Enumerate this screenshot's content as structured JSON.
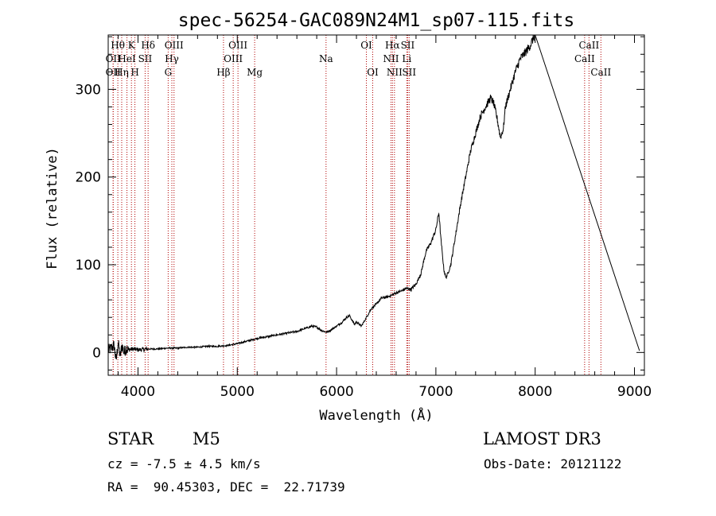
{
  "chart_data": {
    "type": "line",
    "title": "spec-56254-GAC089N24M1_sp07-115.fits",
    "xlabel": "Wavelength (Å)",
    "ylabel": "Flux (relative)",
    "xlim": [
      3700,
      9100
    ],
    "ylim": [
      -26,
      362
    ],
    "xticks": [
      4000,
      5000,
      6000,
      7000,
      8000,
      9000
    ],
    "yticks": [
      0,
      100,
      200,
      300
    ],
    "grid": false,
    "series": [
      {
        "name": "spectrum",
        "color": "#000000",
        "x": [
          3700,
          3760,
          3780,
          3800,
          3820,
          3840,
          3860,
          3880,
          3900,
          3950,
          4000,
          4100,
          4200,
          4300,
          4400,
          4500,
          4600,
          4700,
          4800,
          4900,
          5000,
          5100,
          5200,
          5300,
          5400,
          5500,
          5600,
          5700,
          5750,
          5800,
          5850,
          5900,
          5950,
          6000,
          6050,
          6100,
          6130,
          6150,
          6180,
          6200,
          6250,
          6300,
          6350,
          6400,
          6450,
          6500,
          6550,
          6600,
          6650,
          6700,
          6750,
          6800,
          6850,
          6900,
          6950,
          7000,
          7030,
          7050,
          7080,
          7100,
          7120,
          7150,
          7200,
          7250,
          7300,
          7350,
          7400,
          7450,
          7500,
          7550,
          7580,
          7620,
          7650,
          7680,
          7700,
          7750,
          7800,
          7850,
          7900,
          7950,
          7980,
          8000,
          9050
        ],
        "y": [
          2,
          8,
          -10,
          12,
          -5,
          8,
          0,
          5,
          3,
          4,
          3,
          4,
          4,
          5,
          5,
          6,
          6,
          7,
          7,
          8,
          10,
          13,
          16,
          18,
          20,
          22,
          24,
          28,
          30,
          29,
          25,
          23,
          26,
          30,
          34,
          40,
          42,
          38,
          32,
          35,
          30,
          40,
          50,
          55,
          62,
          63,
          65,
          68,
          70,
          73,
          72,
          78,
          90,
          115,
          125,
          140,
          160,
          130,
          95,
          85,
          90,
          100,
          135,
          170,
          200,
          230,
          250,
          270,
          280,
          290,
          285,
          265,
          245,
          255,
          280,
          300,
          320,
          335,
          342,
          350,
          358,
          362,
          2
        ]
      }
    ],
    "lines": [
      {
        "wl": 3750,
        "label": "OII",
        "row": 1
      },
      {
        "wl": 3750,
        "label": "OII",
        "row": 2
      },
      {
        "wl": 3797,
        "label": "Hθ",
        "row": 0
      },
      {
        "wl": 3836,
        "label": "Hη",
        "row": 2
      },
      {
        "wl": 3889,
        "label": "HeI",
        "row": 1
      },
      {
        "wl": 3934,
        "label": "K",
        "row": 0
      },
      {
        "wl": 3969,
        "label": "H",
        "row": 2
      },
      {
        "wl": 4072,
        "label": "SII",
        "row": 1
      },
      {
        "wl": 4102,
        "label": "Hδ",
        "row": 0
      },
      {
        "wl": 4304,
        "label": "G",
        "row": 2
      },
      {
        "wl": 4341,
        "label": "Hγ",
        "row": 1
      },
      {
        "wl": 4363,
        "label": "OIII",
        "row": 0
      },
      {
        "wl": 4861,
        "label": "Hβ",
        "row": 2
      },
      {
        "wl": 4959,
        "label": "OIII",
        "row": 1
      },
      {
        "wl": 5007,
        "label": "OIII",
        "row": 0
      },
      {
        "wl": 5175,
        "label": "Mg",
        "row": 2
      },
      {
        "wl": 5894,
        "label": "Na",
        "row": 1
      },
      {
        "wl": 6300,
        "label": "OI",
        "row": 0
      },
      {
        "wl": 6364,
        "label": "OI",
        "row": 2
      },
      {
        "wl": 6548,
        "label": "NII",
        "row": 1
      },
      {
        "wl": 6563,
        "label": "Hα",
        "row": 0
      },
      {
        "wl": 6583,
        "label": "NII",
        "row": 2
      },
      {
        "wl": 6707,
        "label": "Li",
        "row": 1
      },
      {
        "wl": 6716,
        "label": "SII",
        "row": 0
      },
      {
        "wl": 6731,
        "label": "SII",
        "row": 2
      },
      {
        "wl": 8498,
        "label": "CaII",
        "row": 1
      },
      {
        "wl": 8542,
        "label": "CaII",
        "row": 0
      },
      {
        "wl": 8662,
        "label": "CaII",
        "row": 2
      }
    ],
    "line_color": "#b00000"
  },
  "info": {
    "object_class": "STAR",
    "subclass": "M5",
    "survey": "LAMOST DR3",
    "cz": "cz = -7.5 ± 4.5 km/s",
    "obs_date": "Obs-Date: 20121122",
    "coords": "RA =  90.45303, DEC =  22.71739"
  }
}
